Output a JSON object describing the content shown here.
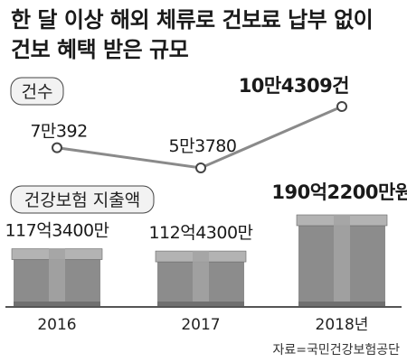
{
  "title": {
    "line1": "한 달 이상 해외 체류로 건보료 납부 없이",
    "line2": "건보 혜택 받은 규모"
  },
  "source": "자료=국민건강보험공단",
  "colors": {
    "line": "#8a8a8a",
    "box_dark": "#707070",
    "box_mid": "#8c8c8c",
    "box_light": "#a3a3a3",
    "box_top": "#b3b3b3",
    "baseline": "#555555",
    "label_box": "#f2f2f2"
  },
  "chart_data": [
    {
      "type": "line",
      "series_label": "건수",
      "categories": [
        "2016",
        "2017",
        "2018년"
      ],
      "values": [
        70392,
        53780,
        104309
      ],
      "data_labels": [
        "7만392",
        "5만3780",
        "10만4309건"
      ],
      "grid": false
    },
    {
      "type": "bar",
      "series_label": "건강보험 지출액",
      "categories": [
        "2016",
        "2017",
        "2018년"
      ],
      "values": [
        11734000,
        11243000,
        19022000
      ],
      "data_labels": [
        "117억3400만",
        "112억4300만",
        "190억2200만원"
      ],
      "grid": false
    }
  ]
}
